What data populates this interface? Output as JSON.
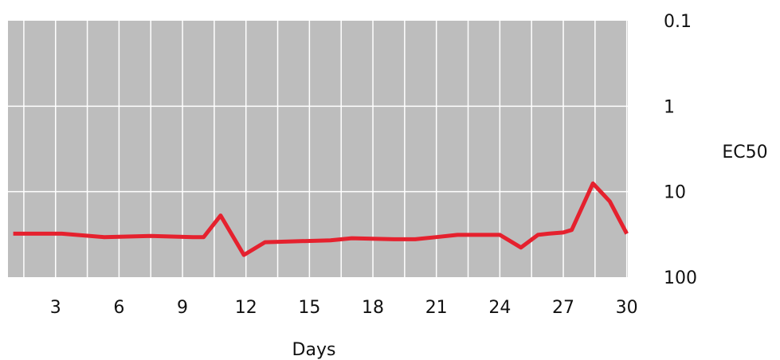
{
  "chart_data": {
    "type": "line",
    "title": "",
    "xlabel": "Days",
    "ylabel": "EC50",
    "x_ticks": [
      3,
      6,
      9,
      12,
      15,
      18,
      21,
      24,
      27,
      30
    ],
    "y_ticks": [
      0.1,
      1,
      10,
      100
    ],
    "y_tick_labels": [
      "0.1",
      "1",
      "10",
      "100"
    ],
    "y_scale": "log",
    "y_inverted": true,
    "ylim": [
      0.1,
      100
    ],
    "grid": true,
    "legend": "none",
    "plot_background": "#bdbdbd",
    "grid_color": "#ffffff",
    "series": [
      {
        "color": "#e5212e",
        "x": [
          1,
          3.3,
          5.3,
          7.5,
          9.5,
          10,
          10.8,
          11.9,
          12.9,
          16,
          17,
          19,
          20,
          21,
          22,
          24,
          25,
          25.8,
          26.3,
          27,
          27.4,
          28.4,
          29.2,
          30
        ],
        "y": [
          31,
          31,
          34,
          33,
          34,
          34,
          19,
          55,
          39,
          37,
          35,
          36,
          36,
          34,
          32,
          32,
          45,
          32,
          31,
          30,
          28,
          8,
          13,
          31
        ]
      }
    ]
  }
}
